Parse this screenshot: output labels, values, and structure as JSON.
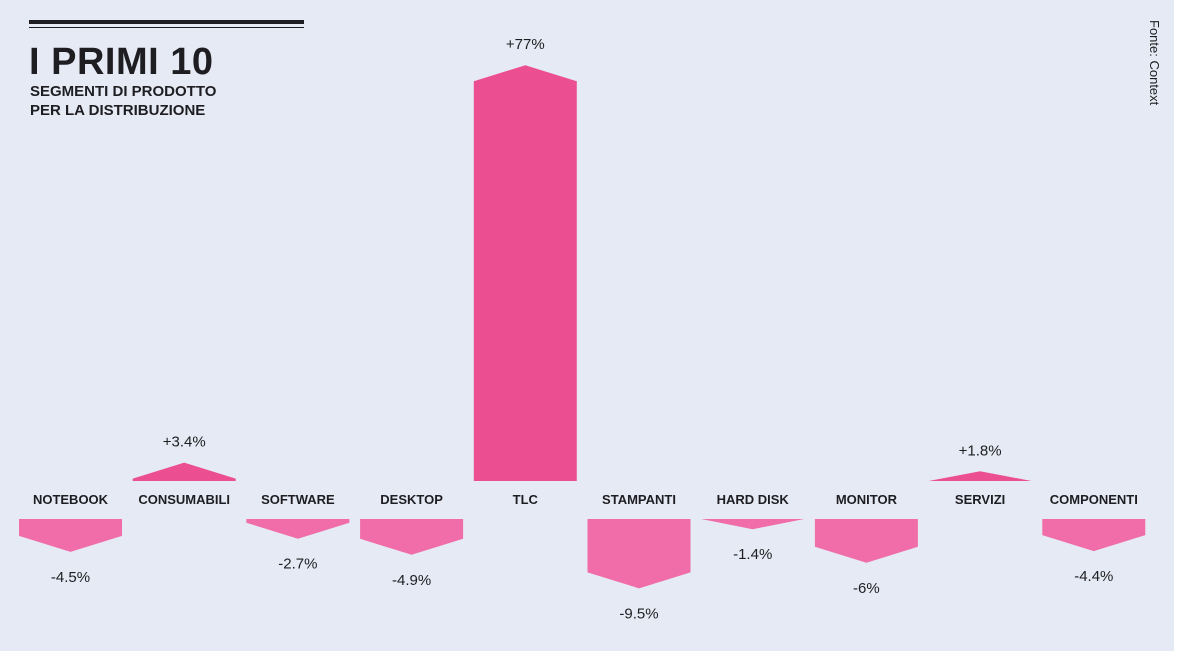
{
  "header": {
    "title": "I PRIMI 10",
    "subtitle_line1": "SEGMENTI DI PRODOTTO",
    "subtitle_line2": "PER LA DISTRIBUZIONE",
    "source": "Fonte: Context"
  },
  "colors": {
    "background": "#e6eaf4",
    "positive": "#ec4f91",
    "negative": "#f06da9",
    "text": "#1e1e22"
  },
  "chart_data": {
    "type": "bar",
    "title": "I PRIMI 10",
    "subtitle": "SEGMENTI DI PRODOTTO PER LA DISTRIBUZIONE",
    "unit": "%",
    "categories": [
      "NOTEBOOK",
      "CONSUMABILI",
      "SOFTWARE",
      "DESKTOP",
      "TLC",
      "STAMPANTI",
      "HARD DISK",
      "MONITOR",
      "SERVIZI",
      "COMPONENTI"
    ],
    "values": [
      -4.5,
      3.4,
      -2.7,
      -4.9,
      77,
      -9.5,
      -1.4,
      -6,
      1.8,
      -4.4
    ],
    "value_labels": [
      "-4.5%",
      "+3.4%",
      "-2.7%",
      "-4.9%",
      "+77%",
      "-9.5%",
      "-1.4%",
      "-6%",
      "+1.8%",
      "-4.4%"
    ],
    "grid": false,
    "legend": "none"
  }
}
